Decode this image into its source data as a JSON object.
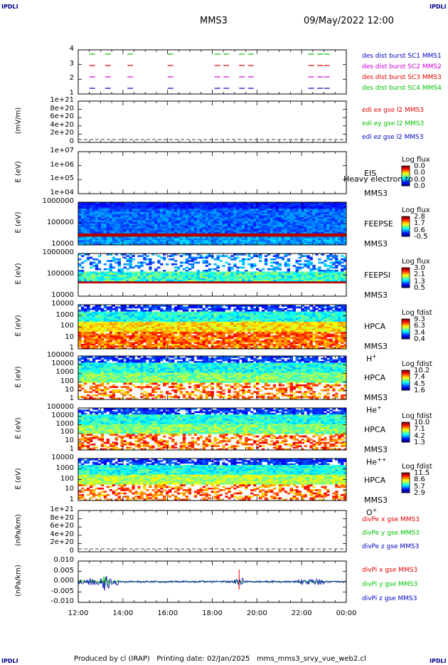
{
  "header": {
    "corner_tl": "IPDLI",
    "corner_tr": "IPDLI",
    "corner_bl": "IPDLI",
    "corner_br": "IPDLI",
    "spacecraft": "MMS3",
    "datetime": "09/May/2022 12:00"
  },
  "footer": {
    "produced_by": "Produced by cl (IRAP)",
    "printing_date": "Printing date: 02/Jan/2025",
    "filename": "mms_mms3_srvy_vue_web2.cl"
  },
  "colors": {
    "red": "#e00000",
    "green": "#00c000",
    "blue": "#0000c0",
    "magenta": "#d000d0"
  },
  "chart_data": {
    "type": "multi-panel",
    "x_ticks": [
      "12:00",
      "14:00",
      "16:00",
      "18:00",
      "20:00",
      "22:00",
      "00:00"
    ],
    "panels": [
      {
        "id": "burst",
        "type": "scatter",
        "yticks": [
          "4",
          "3",
          "2",
          "1"
        ],
        "legend": [
          {
            "text": "des dist burst SC1 MMS1",
            "color": "#0000c0"
          },
          {
            "text": "des dist burst SC2 MMS2",
            "color": "#d000d0"
          },
          {
            "text": "des dist burst SC3 MMS3",
            "color": "#e00000"
          },
          {
            "text": "des dist burst SC4 MMS4",
            "color": "#00c000"
          }
        ],
        "burst_hours": [
          12.5,
          13.2,
          14.2,
          16.0,
          18.1,
          18.5,
          19.2,
          19.6,
          22.3,
          22.7,
          23.0
        ]
      },
      {
        "id": "edi",
        "type": "line",
        "ylabel": "(mV/m)",
        "yticks": [
          "1e+21",
          "8e+20",
          "6e+20",
          "4e+20",
          "2e+20",
          "0"
        ],
        "legend": [
          {
            "text": "edi ex gse l2 MMS3",
            "color": "#e00000"
          },
          {
            "text": "edi ey gse l2 MMS3",
            "color": "#00c000"
          },
          {
            "text": "edi ez gse l2 MMS3",
            "color": "#0000c0"
          }
        ]
      },
      {
        "id": "eis",
        "type": "heatmap",
        "ylabel": "E (eV)",
        "yticks": [
          "1e+07",
          "1e+06",
          "1e+05",
          "1e+04"
        ],
        "instrument": "EIS",
        "overlay_text": "Heavy electron to",
        "spacecraft": "MMS3",
        "cbar_title": "Log flux",
        "cbar_values": [
          "0.0",
          "0.0",
          "0.0",
          "0.0"
        ]
      },
      {
        "id": "feepse",
        "type": "heatmap",
        "ylabel": "E (eV)",
        "yticks": [
          "1000000",
          "100000",
          "10000"
        ],
        "instrument": "FEEPSE",
        "spacecraft": "MMS3",
        "cbar_title": "Log flux",
        "cbar_values": [
          "2.8",
          "1.7",
          "0.6",
          "-0.5"
        ]
      },
      {
        "id": "feepsi",
        "type": "heatmap",
        "ylabel": "E (eV)",
        "yticks": [
          "1000000",
          "100000",
          "10000"
        ],
        "instrument": "FEEPSI",
        "spacecraft": "MMS3",
        "cbar_title": "Log flux",
        "cbar_values": [
          "3.0",
          "2.1",
          "1.3",
          "0.5"
        ]
      },
      {
        "id": "hpca_h",
        "type": "heatmap",
        "ylabel": "E (eV)",
        "yticks": [
          "10000",
          "1000",
          "100",
          "10",
          "1"
        ],
        "instrument": "HPCA",
        "spacecraft": "MMS3",
        "species": "H",
        "species_sup": "+",
        "cbar_title": "Log fdist",
        "cbar_values": [
          "9.3",
          "6.3",
          "3.4",
          "0.4"
        ]
      },
      {
        "id": "hpca_he",
        "type": "heatmap",
        "ylabel": "E (eV)",
        "yticks": [
          "100000",
          "10000",
          "1000",
          "100",
          "10",
          "1"
        ],
        "instrument": "HPCA",
        "spacecraft": "MMS3",
        "species": "He",
        "species_sup": "+",
        "cbar_title": "Log fdist",
        "cbar_values": [
          "10.2",
          "7.4",
          "4.5",
          "1.6"
        ]
      },
      {
        "id": "hpca_he2",
        "type": "heatmap",
        "ylabel": "E (eV)",
        "yticks": [
          "100000",
          "10000",
          "1000",
          "100",
          "10",
          "1"
        ],
        "instrument": "HPCA",
        "spacecraft": "MMS3",
        "species": "He",
        "species_sup": "++",
        "cbar_title": "Log fdist",
        "cbar_values": [
          "10.0",
          "7.1",
          "4.2",
          "1.3"
        ]
      },
      {
        "id": "hpca_o",
        "type": "heatmap",
        "ylabel": "E (eV)",
        "yticks": [
          "10000",
          "1000",
          "100",
          "10",
          "1"
        ],
        "instrument": "HPCA",
        "spacecraft": "MMS3",
        "species": "O",
        "species_sup": "+",
        "cbar_title": "Log fdist",
        "cbar_values": [
          "11.5",
          "8.6",
          "5.7",
          "2.9"
        ]
      },
      {
        "id": "divpe",
        "type": "line",
        "ylabel": "(nPa/km)",
        "yticks": [
          "1e+21",
          "8e+20",
          "6e+20",
          "4e+20",
          "2e+20",
          "0"
        ],
        "legend": [
          {
            "text": "divPe x gse MMS3",
            "color": "#e00000"
          },
          {
            "text": "divPe y gse MMS3",
            "color": "#00c000"
          },
          {
            "text": "divPe z gse MMS3",
            "color": "#0000c0"
          }
        ]
      },
      {
        "id": "divpi",
        "type": "line",
        "ylabel": "(nPa/km)",
        "yticks": [
          "0.010",
          "0.005",
          "0.000",
          "-0.005",
          "-0.010"
        ],
        "legend": [
          {
            "text": "divPi x gse MMS3",
            "color": "#e00000"
          },
          {
            "text": "divPi y gse MMS3",
            "color": "#00c000"
          },
          {
            "text": "divPi z gse MMS3",
            "color": "#0000c0"
          }
        ]
      }
    ]
  }
}
